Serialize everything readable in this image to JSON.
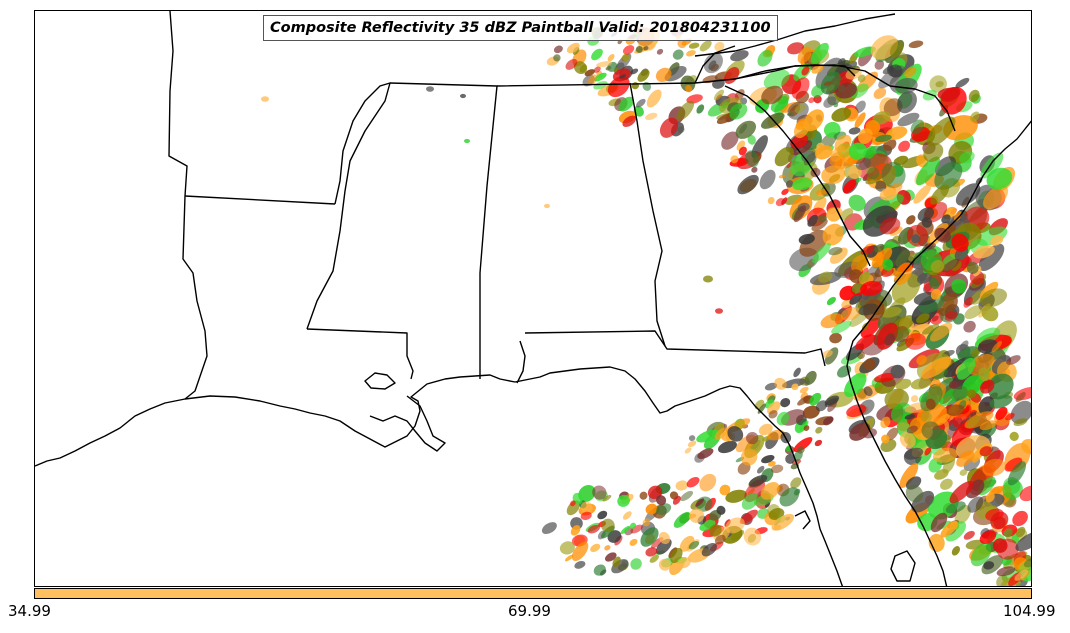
{
  "title": "Composite Reflectivity 35 dBZ Paintball Valid: 201804231100",
  "colorbar": {
    "color": "#ffc060",
    "tick_labels": [
      "34.99",
      "69.99",
      "104.99"
    ]
  },
  "paintball_colors": [
    "#ff0000",
    "#dd1111",
    "#ff8c00",
    "#ffa31a",
    "#ffb84d",
    "#22cc22",
    "#33dd33",
    "#2e7d32",
    "#556b2f",
    "#808000",
    "#a0a020",
    "#8b4513",
    "#7b3030",
    "#555555",
    "#3a3a3a"
  ],
  "map": {
    "lines_color": "#000000"
  }
}
